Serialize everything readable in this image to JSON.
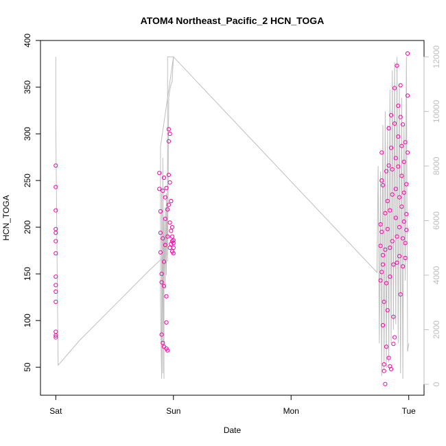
{
  "chart_data": {
    "type": "scatter",
    "title": "ATOM4 Northeast_Pacific_2 HCN_TOGA",
    "xlabel": "Date",
    "ylabel": "HCN_TOGA",
    "x_ticks": [
      "Sat",
      "Sun",
      "Mon",
      "Tue"
    ],
    "xlim_days": [
      -0.13,
      3.13
    ],
    "ylim": [
      20,
      400
    ],
    "y_ticks": [
      50,
      100,
      150,
      200,
      250,
      300,
      350,
      400
    ],
    "y2lim": [
      -400,
      12600
    ],
    "y2_ticks": [
      0,
      2000,
      4000,
      6000,
      8000,
      10000,
      12000
    ],
    "colors": {
      "points": "#ff00aa",
      "line": "#bebebe",
      "axis": "#000000",
      "axis2": "#bebebe"
    },
    "series": [
      {
        "kind": "points",
        "axis": "left",
        "x_days": [
          0.0,
          0.0,
          0.0,
          0.0,
          0.0,
          0.0,
          0.0,
          0.0,
          0.0,
          0.0,
          0.0,
          0.0,
          0.0,
          0.0,
          0.88,
          0.88,
          0.89,
          0.89,
          0.89,
          0.9,
          0.9,
          0.9,
          0.91,
          0.91,
          0.91,
          0.92,
          0.92,
          0.92,
          0.92,
          0.93,
          0.93,
          0.93,
          0.94,
          0.94,
          0.94,
          0.94,
          0.95,
          0.95,
          0.95,
          0.96,
          0.96,
          0.96,
          0.96,
          0.97,
          0.97,
          0.97,
          0.97,
          0.98,
          0.98,
          0.98,
          0.99,
          0.99,
          0.99,
          0.99,
          1.0,
          1.0,
          1.0,
          1.0,
          2.76,
          2.76,
          2.76,
          2.77,
          2.77,
          2.77,
          2.77,
          2.78,
          2.78,
          2.78,
          2.78,
          2.79,
          2.79,
          2.79,
          2.8,
          2.8,
          2.8,
          2.81,
          2.81,
          2.81,
          2.82,
          2.82,
          2.82,
          2.83,
          2.83,
          2.83,
          2.84,
          2.84,
          2.84,
          2.84,
          2.85,
          2.85,
          2.85,
          2.86,
          2.86,
          2.86,
          2.87,
          2.87,
          2.87,
          2.88,
          2.88,
          2.88,
          2.89,
          2.89,
          2.89,
          2.9,
          2.9,
          2.9,
          2.91,
          2.91,
          2.91,
          2.92,
          2.92,
          2.92,
          2.93,
          2.93,
          2.93,
          2.94,
          2.94,
          2.94,
          2.95,
          2.95,
          2.95,
          2.96,
          2.96,
          2.96,
          2.97,
          2.97,
          2.97,
          2.98,
          2.98,
          2.98,
          2.99,
          2.99,
          2.99
        ],
        "y": [
          266,
          243,
          218,
          198,
          194,
          185,
          172,
          147,
          138,
          131,
          120,
          88,
          84,
          82,
          258,
          241,
          217,
          194,
          173,
          150,
          141,
          85,
          76,
          239,
          188,
          163,
          137,
          72,
          253,
          232,
          209,
          181,
          126,
          98,
          70,
          242,
          219,
          190,
          68,
          305,
          292,
          256,
          224,
          205,
          178,
          300,
          248,
          196,
          182,
          228,
          200,
          185,
          174,
          190,
          186,
          183,
          178,
          172,
          203,
          180,
          143,
          280,
          250,
          195,
          152,
          95,
          170,
          245,
          160,
          120,
          53,
          46,
          32,
          215,
          176,
          140,
          72,
          260,
          198,
          228,
          111,
          60,
          306,
          266,
          218,
          178,
          147,
          51,
          48,
          320,
          285,
          262,
          235,
          185,
          160,
          104,
          75,
          82,
          349,
          311,
          274,
          241,
          210,
          190,
          162,
          373,
          330,
          297,
          265,
          232,
          200,
          169,
          128,
          352,
          318,
          287,
          255,
          222,
          188,
          158,
          310,
          270,
          237,
          206,
          183,
          167,
          291,
          246,
          214,
          197,
          386,
          341,
          280
        ]
      },
      {
        "kind": "line",
        "axis": "right",
        "x_days": [
          0.0,
          0.0,
          0.0,
          0.02,
          0.2,
          0.5,
          0.8,
          0.95,
          0.95,
          0.96,
          0.96,
          0.97,
          0.97,
          0.97,
          0.98,
          0.98,
          0.98,
          0.99,
          0.99,
          0.99,
          1.0,
          1.0,
          1.0,
          1.0,
          1.0,
          1.0,
          1.0,
          0.89,
          0.89,
          0.9,
          0.9,
          0.91,
          0.91,
          0.92,
          0.92,
          0.93,
          0.93,
          0.94,
          0.94,
          0.95,
          0.96,
          0.97,
          0.98,
          0.99,
          0.99,
          1.0,
          1.0,
          1.0,
          1.0,
          1.0,
          1.0,
          1.0,
          1.0,
          1.0,
          1.0,
          1.0,
          1.0,
          1.0,
          1.0,
          1.0,
          2.73,
          2.74,
          2.75,
          2.76,
          2.77,
          2.78,
          2.79,
          2.8,
          2.81,
          2.82,
          2.83,
          2.84,
          2.85,
          2.86,
          2.87,
          2.88,
          2.89,
          2.9,
          2.91,
          2.92,
          2.93,
          2.94,
          2.95,
          2.96,
          2.97,
          2.98,
          2.99,
          3.0
        ],
        "y2": [
          12000,
          11500,
          9500,
          700,
          1600,
          2900,
          4200,
          4800,
          12000,
          12000,
          12000,
          12000,
          12000,
          12000,
          12000,
          12000,
          12000,
          12000,
          12000,
          12000,
          12000,
          12000,
          12000,
          12000,
          12000,
          12000,
          12000,
          8700,
          3000,
          200,
          7000,
          400,
          8300,
          200,
          6000,
          3500,
          6500,
          4000,
          7000,
          4500,
          10500,
          10800,
          11000,
          11100,
          11200,
          12000,
          12000,
          12000,
          12000,
          12000,
          12000,
          12000,
          12000,
          12000,
          12000,
          12000,
          12000,
          12000,
          12000,
          12000,
          4100,
          8000,
          1500,
          7800,
          300,
          9500,
          500,
          10000,
          600,
          9500,
          800,
          10800,
          1500,
          11500,
          2000,
          11800,
          2200,
          12000,
          1500,
          11000,
          400,
          10500,
          200,
          9500,
          3800,
          12000,
          1200,
          1500
        ]
      }
    ]
  }
}
